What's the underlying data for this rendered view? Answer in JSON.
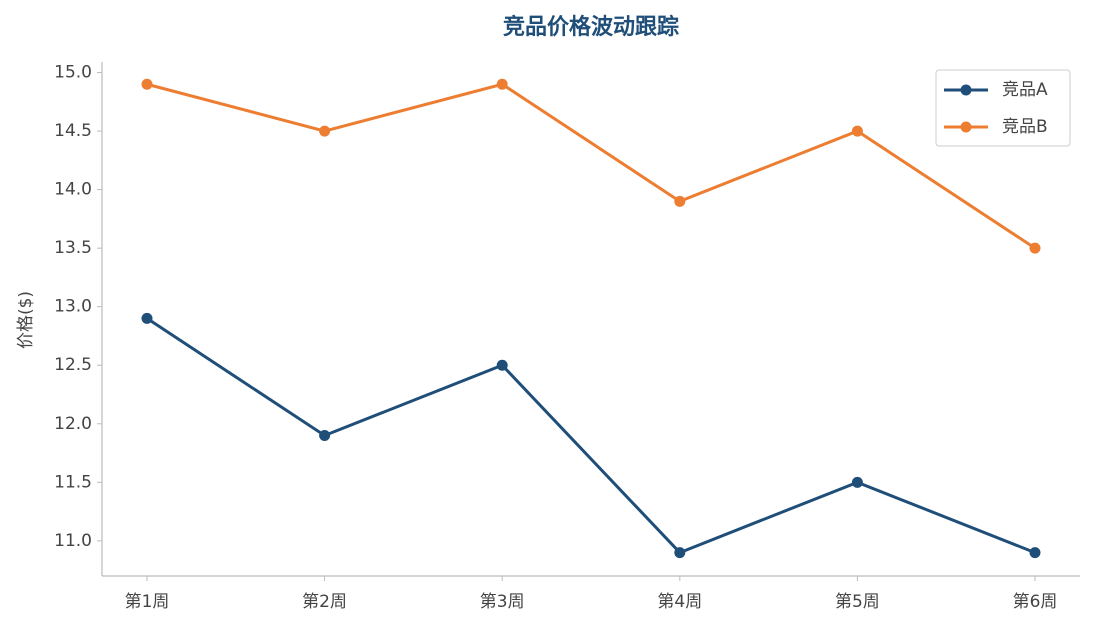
{
  "chart_data": {
    "type": "line",
    "title": "竞品价格波动跟踪",
    "y_label": "价格($)",
    "categories": [
      "第1周",
      "第2周",
      "第3周",
      "第4周",
      "第5周",
      "第6周"
    ],
    "series": [
      {
        "name": "竞品A",
        "color": "#1f4e79",
        "values": [
          12.9,
          11.9,
          12.5,
          10.9,
          11.5,
          10.9
        ]
      },
      {
        "name": "竞品B",
        "color": "#ed7d31",
        "values": [
          14.9,
          14.5,
          14.9,
          13.9,
          14.5,
          13.5
        ]
      }
    ],
    "ylim": [
      10.7,
      15.09
    ],
    "yticks": [
      {
        "value": 11,
        "label": "11.0"
      },
      11.5,
      {
        "value": 12,
        "label": "12.0"
      },
      12.5,
      {
        "value": 13,
        "label": "13.0"
      },
      13.5,
      {
        "value": 14,
        "label": "14.0"
      },
      14.5,
      {
        "value": 15,
        "label": "15.0"
      }
    ],
    "grid": false,
    "legend": "upper-right"
  }
}
